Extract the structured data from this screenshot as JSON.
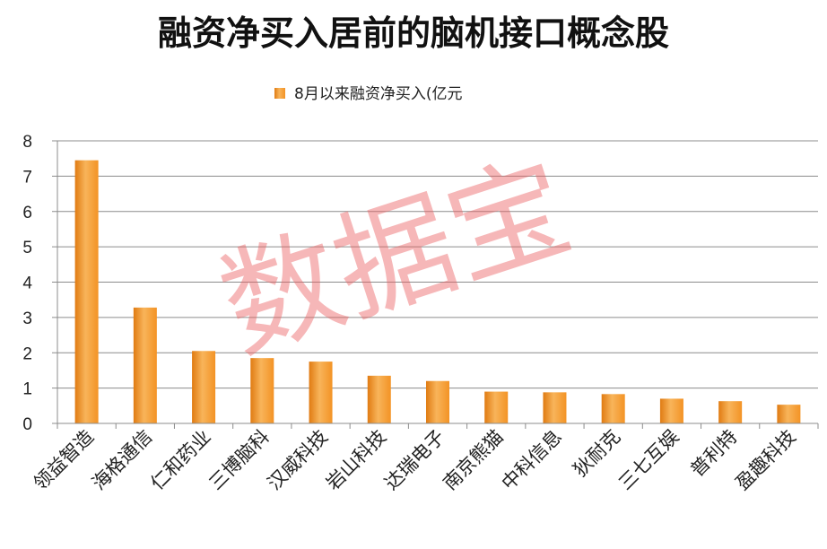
{
  "chart_data": {
    "type": "bar",
    "title": "融资净买入居前的脑机接口概念股",
    "series": [
      {
        "name": "8月以来融资净买入(亿元",
        "values": [
          7.45,
          3.28,
          2.05,
          1.85,
          1.75,
          1.35,
          1.2,
          0.9,
          0.88,
          0.83,
          0.7,
          0.63,
          0.53
        ]
      }
    ],
    "categories": [
      "领益智造",
      "海格通信",
      "仁和药业",
      "三博脑科",
      "汉威科技",
      "岩山科技",
      "达瑞电子",
      "南京熊猫",
      "中科信息",
      "狄耐克",
      "三七互娱",
      "普利特",
      "盈趣科技"
    ],
    "yticks": [
      "0",
      "1",
      "2",
      "3",
      "4",
      "5",
      "6",
      "7",
      "8"
    ],
    "ylim": [
      0,
      8
    ],
    "grid": true,
    "legend_position": "top-center",
    "bar_color": "#f39325",
    "bar_color_light": "#f8b45a",
    "bar_color_dark": "#e07b12"
  },
  "watermark": "数据宝"
}
